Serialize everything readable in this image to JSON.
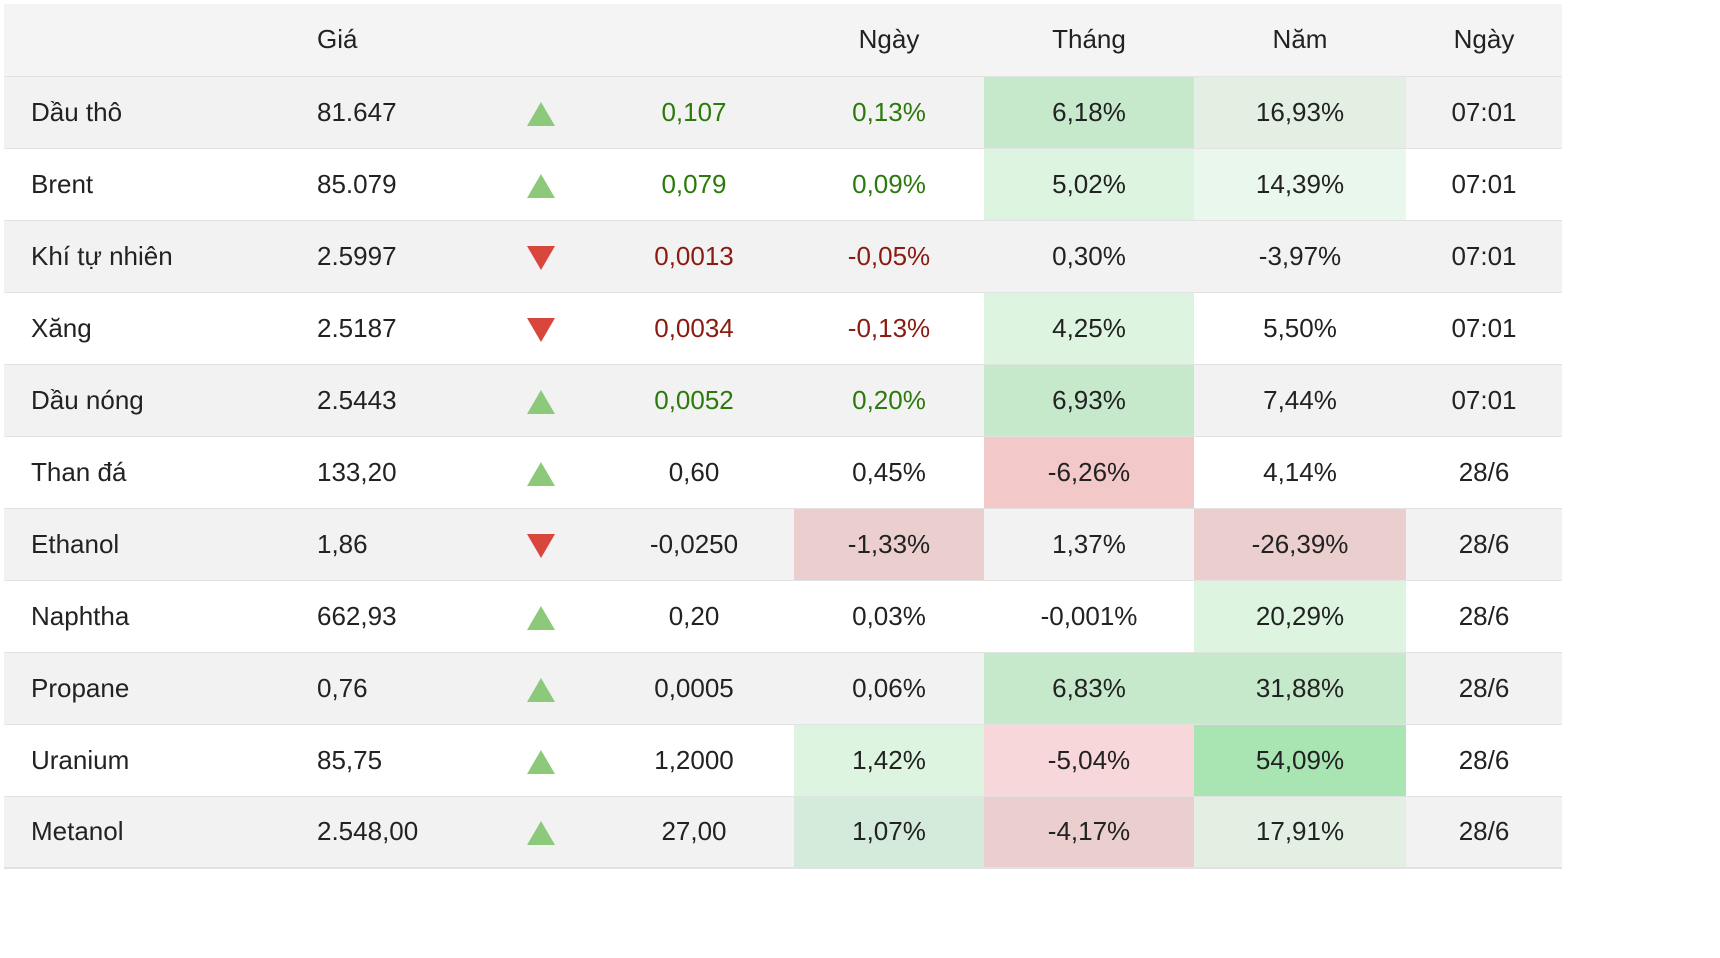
{
  "header": {
    "price": "Giá",
    "day": "Ngày",
    "month": "Tháng",
    "year": "Năm",
    "date": "Ngày"
  },
  "colors": {
    "positive_text": "#2b7a0b",
    "negative_text": "#8b1a10",
    "arrow_up": "#8cc97a",
    "arrow_down": "#d9463e"
  },
  "rows": [
    {
      "name": "Dầu thô",
      "price": "81.647",
      "direction": "up",
      "change": "0,107",
      "day": "0,13%",
      "month": "6,18%",
      "year": "16,93%",
      "date": "07:01",
      "change_color": "pos",
      "month_bg": "#c6e8cb",
      "year_bg": "#e4efe4",
      "day_bg": ""
    },
    {
      "name": "Brent",
      "price": "85.079",
      "direction": "up",
      "change": "0,079",
      "day": "0,09%",
      "month": "5,02%",
      "year": "14,39%",
      "date": "07:01",
      "change_color": "pos",
      "month_bg": "#ddf5e0",
      "year_bg": "#eaf7ec",
      "day_bg": ""
    },
    {
      "name": "Khí tự nhiên",
      "price": "2.5997",
      "direction": "down",
      "change": "0,0013",
      "day": "-0,05%",
      "month": "0,30%",
      "year": "-3,97%",
      "date": "07:01",
      "change_color": "neg",
      "month_bg": "",
      "year_bg": "",
      "day_bg": ""
    },
    {
      "name": "Xăng",
      "price": "2.5187",
      "direction": "down",
      "change": "0,0034",
      "day": "-0,13%",
      "month": "4,25%",
      "year": "5,50%",
      "date": "07:01",
      "change_color": "neg",
      "month_bg": "#ddf5e0",
      "year_bg": "",
      "day_bg": ""
    },
    {
      "name": "Dầu nóng",
      "price": "2.5443",
      "direction": "up",
      "change": "0,0052",
      "day": "0,20%",
      "month": "6,93%",
      "year": "7,44%",
      "date": "07:01",
      "change_color": "pos",
      "month_bg": "#c6e8cb",
      "year_bg": "",
      "day_bg": ""
    },
    {
      "name": "Than đá",
      "price": "133,20",
      "direction": "up",
      "change": "0,60",
      "day": "0,45%",
      "month": "-6,26%",
      "year": "4,14%",
      "date": "28/6",
      "change_color": "",
      "month_bg": "#f3c8c8",
      "year_bg": "",
      "day_bg": ""
    },
    {
      "name": "Ethanol",
      "price": "1,86",
      "direction": "down",
      "change": "-0,0250",
      "day": "-1,33%",
      "month": "1,37%",
      "year": "-26,39%",
      "date": "28/6",
      "change_color": "",
      "month_bg": "",
      "year_bg": "#ebcfcf",
      "day_bg": "#ebcfcf"
    },
    {
      "name": "Naphtha",
      "price": "662,93",
      "direction": "up",
      "change": "0,20",
      "day": "0,03%",
      "month": "-0,001%",
      "year": "20,29%",
      "date": "28/6",
      "change_color": "",
      "month_bg": "",
      "year_bg": "#ddf5e0",
      "day_bg": ""
    },
    {
      "name": "Propane",
      "price": "0,76",
      "direction": "up",
      "change": "0,0005",
      "day": "0,06%",
      "month": "6,83%",
      "year": "31,88%",
      "date": "28/6",
      "change_color": "",
      "month_bg": "#c6e8cb",
      "year_bg": "#c6e8cb",
      "day_bg": ""
    },
    {
      "name": "Uranium",
      "price": "85,75",
      "direction": "up",
      "change": "1,2000",
      "day": "1,42%",
      "month": "-5,04%",
      "year": "54,09%",
      "date": "28/6",
      "change_color": "",
      "month_bg": "#f8d7da",
      "year_bg": "#a9e5b3",
      "day_bg": "#ddf5e0"
    },
    {
      "name": "Metanol",
      "price": "2.548,00",
      "direction": "up",
      "change": "27,00",
      "day": "1,07%",
      "month": "-4,17%",
      "year": "17,91%",
      "date": "28/6",
      "change_color": "",
      "month_bg": "#ebcfcf",
      "year_bg": "#e4efe4",
      "day_bg": "#d4ebdb"
    }
  ]
}
